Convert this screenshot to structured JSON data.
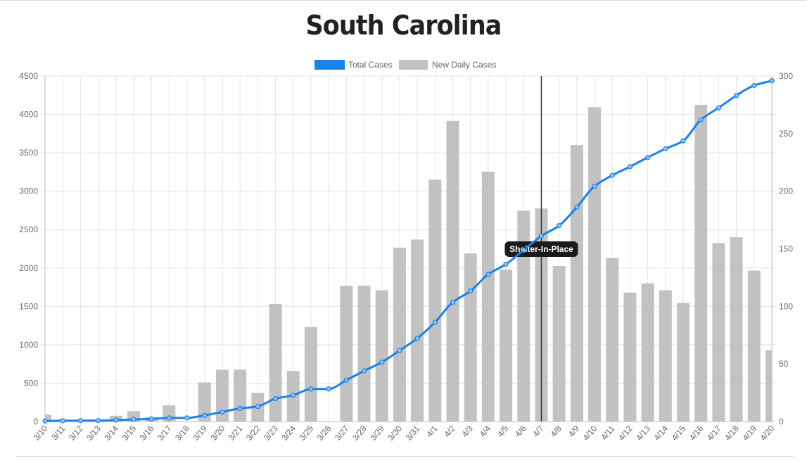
{
  "chart_data": {
    "type": "bar",
    "title": "South Carolina",
    "categories": [
      "3/10",
      "3/11",
      "3/12",
      "3/13",
      "3/14",
      "3/15",
      "3/16",
      "3/17",
      "3/18",
      "3/19",
      "3/20",
      "3/21",
      "3/22",
      "3/23",
      "3/24",
      "3/25",
      "3/26",
      "3/27",
      "3/28",
      "3/29",
      "3/30",
      "3/31",
      "4/1",
      "4/2",
      "4/3",
      "4/4",
      "4/5",
      "4/6",
      "4/7",
      "4/8",
      "4/9",
      "4/10",
      "4/11",
      "4/12",
      "4/13",
      "4/14",
      "4/15",
      "4/16",
      "4/17",
      "4/18",
      "4/19",
      "4/20"
    ],
    "series": [
      {
        "name": "Total Cases",
        "type": "line",
        "axis": "left",
        "color": "#1a82e8",
        "values": [
          7,
          10,
          12,
          13,
          19,
          28,
          33,
          47,
          47,
          81,
          125,
          171,
          196,
          298,
          342,
          424,
          424,
          539,
          660,
          774,
          925,
          1083,
          1293,
          1554,
          1700,
          1917,
          2049,
          2232,
          2417,
          2552,
          2792,
          3065,
          3207,
          3319,
          3439,
          3553,
          3656,
          3931,
          4086,
          4246,
          4377,
          4439
        ]
      },
      {
        "name": "New Daily Cases",
        "type": "bar",
        "axis": "right",
        "color": "#c2c2c2",
        "values": [
          6,
          2,
          1,
          1,
          5,
          9,
          4,
          14,
          0,
          34,
          45,
          45,
          25,
          102,
          44,
          82,
          0,
          118,
          118,
          114,
          151,
          158,
          210,
          261,
          146,
          217,
          132,
          183,
          185,
          135,
          240,
          273,
          142,
          112,
          120,
          114,
          103,
          275,
          155,
          160,
          131,
          62
        ]
      }
    ],
    "yaxis_left": {
      "min": 0,
      "max": 4500,
      "step": 500
    },
    "yaxis_right": {
      "min": 0,
      "max": 300,
      "step": 50
    },
    "grid": true,
    "legend_position": "top-center",
    "annotation": {
      "at": "4/7",
      "label": "Shelter-In-Place"
    }
  }
}
